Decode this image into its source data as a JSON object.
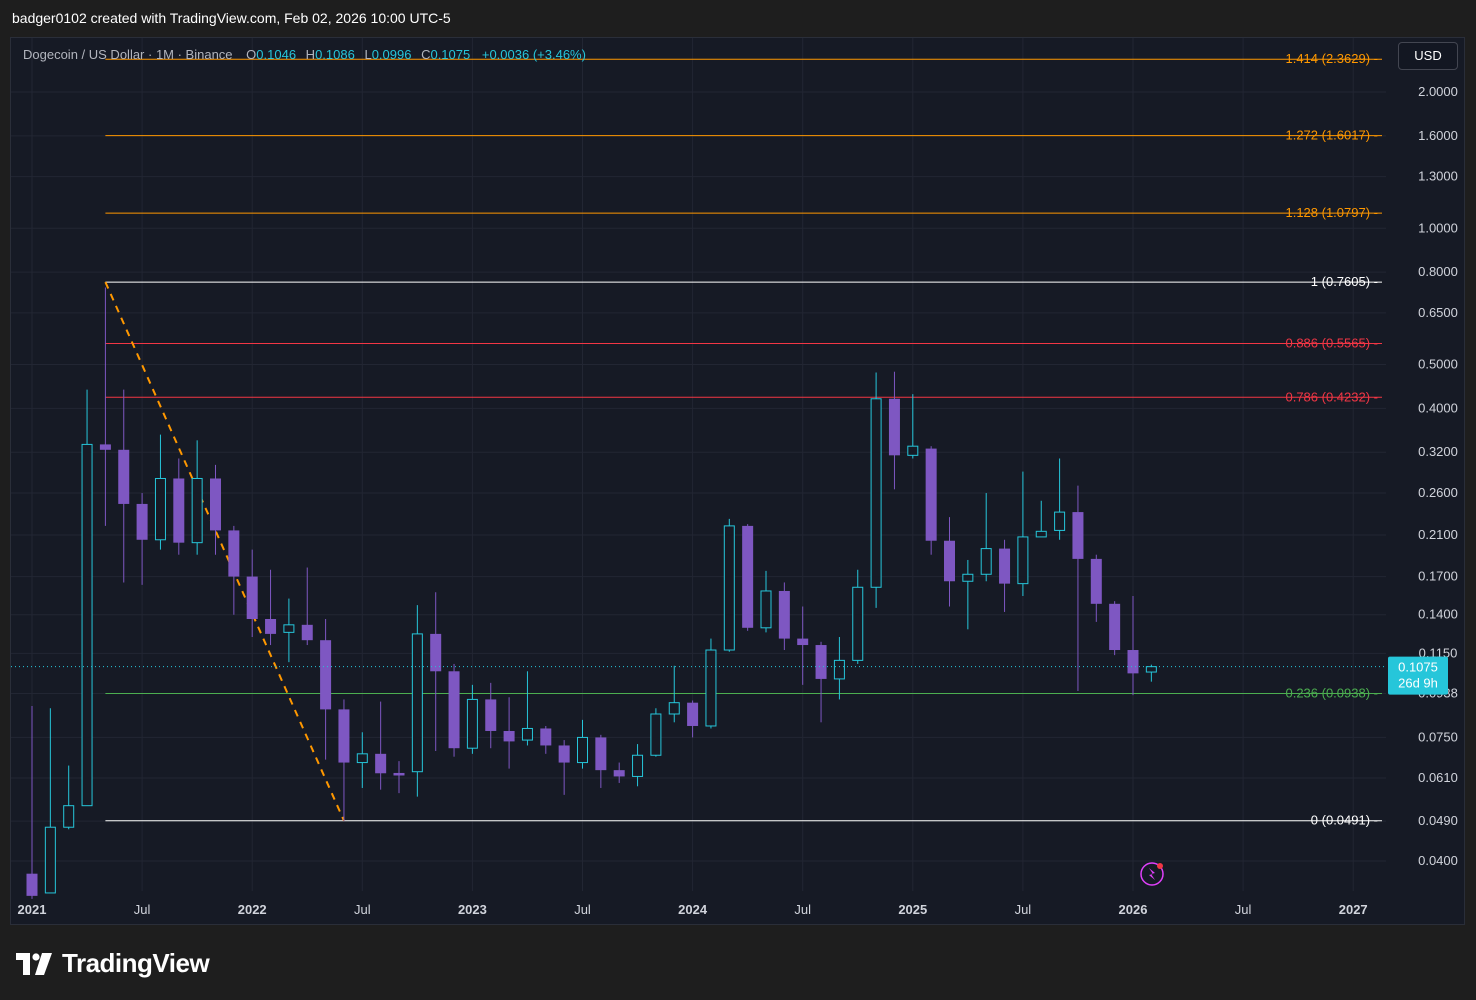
{
  "caption": "badger0102 created with TradingView.com, Feb 02, 2026 10:00 UTC-5",
  "header": {
    "symbol": "Dogecoin / US Dollar · 1M · Binance",
    "o_label": "O",
    "o_value": "0.1046",
    "h_label": "H",
    "h_value": "0.1086",
    "l_label": "L",
    "l_value": "0.0996",
    "c_label": "C",
    "c_value": "0.1075",
    "change": "+0.0036 (+3.46%)"
  },
  "currency_button": "USD",
  "brand": "TradingView",
  "price_tag": {
    "price": "0.1075",
    "countdown": "26d 9h"
  },
  "colors": {
    "up": "#26c6da",
    "down": "#7e57c2",
    "background": "#161a25",
    "grid": "#222633"
  },
  "chart_data": {
    "type": "candlestick",
    "scale": "log",
    "timeframe": "1M",
    "ylim": [
      0.0345,
      2.75
    ],
    "y_ticks": [
      {
        "v": 2.0,
        "label": "2.0000"
      },
      {
        "v": 1.6,
        "label": "1.6000"
      },
      {
        "v": 1.3,
        "label": "1.3000"
      },
      {
        "v": 1.0,
        "label": "1.0000"
      },
      {
        "v": 0.8,
        "label": "0.8000"
      },
      {
        "v": 0.65,
        "label": "0.6500"
      },
      {
        "v": 0.5,
        "label": "0.5000"
      },
      {
        "v": 0.4,
        "label": "0.4000"
      },
      {
        "v": 0.32,
        "label": "0.3200"
      },
      {
        "v": 0.26,
        "label": "0.2600"
      },
      {
        "v": 0.21,
        "label": "0.2100"
      },
      {
        "v": 0.17,
        "label": "0.1700"
      },
      {
        "v": 0.14,
        "label": "0.1400"
      },
      {
        "v": 0.115,
        "label": "0.1150"
      },
      {
        "v": 0.0938,
        "label": "0.0938"
      },
      {
        "v": 0.075,
        "label": "0.0750"
      },
      {
        "v": 0.061,
        "label": "0.0610"
      },
      {
        "v": 0.049,
        "label": "0.0490"
      },
      {
        "v": 0.04,
        "label": "0.0400"
      }
    ],
    "x_ticks": [
      {
        "i": 0,
        "label": "2021"
      },
      {
        "i": 6,
        "label": "Jul"
      },
      {
        "i": 12,
        "label": "2022"
      },
      {
        "i": 18,
        "label": "Jul"
      },
      {
        "i": 24,
        "label": "2023"
      },
      {
        "i": 30,
        "label": "Jul"
      },
      {
        "i": 36,
        "label": "2024"
      },
      {
        "i": 42,
        "label": "Jul"
      },
      {
        "i": 48,
        "label": "2025"
      },
      {
        "i": 54,
        "label": "Jul"
      },
      {
        "i": 60,
        "label": "2026"
      },
      {
        "i": 66,
        "label": "Jul"
      },
      {
        "i": 72,
        "label": "2027"
      }
    ],
    "fib_levels": [
      {
        "ratio": "1.414",
        "price": 2.3629,
        "label": "1.414 (2.3629)",
        "color": "#ff9800"
      },
      {
        "ratio": "1.272",
        "price": 1.6017,
        "label": "1.272 (1.6017)",
        "color": "#ff9800"
      },
      {
        "ratio": "1.128",
        "price": 1.0797,
        "label": "1.128 (1.0797)",
        "color": "#ff9800"
      },
      {
        "ratio": "1",
        "price": 0.7605,
        "label": "1 (0.7605)",
        "color": "#ffffff"
      },
      {
        "ratio": "0.886",
        "price": 0.5565,
        "label": "0.886 (0.5565)",
        "color": "#f23645"
      },
      {
        "ratio": "0.786",
        "price": 0.4232,
        "label": "0.786 (0.4232)",
        "color": "#f23645"
      },
      {
        "ratio": "0.236",
        "price": 0.0938,
        "label": "0.236 (0.0938)",
        "color": "#4caf50"
      },
      {
        "ratio": "0",
        "price": 0.0491,
        "label": "0 (0.0491)",
        "color": "#ffffff"
      }
    ],
    "fib_anchor": {
      "from_i": 4,
      "from_price": 0.7605,
      "to_i": 17,
      "to_price": 0.0491
    },
    "last_price": 0.1075,
    "candles": [
      {
        "d": "2021-01",
        "o": 0.0375,
        "h": 0.088,
        "l": 0.033,
        "c": 0.0335
      },
      {
        "d": "2021-02",
        "o": 0.034,
        "h": 0.087,
        "l": 0.034,
        "c": 0.0475
      },
      {
        "d": "2021-03",
        "o": 0.0475,
        "h": 0.065,
        "l": 0.047,
        "c": 0.053
      },
      {
        "d": "2021-04",
        "o": 0.053,
        "h": 0.44,
        "l": 0.053,
        "c": 0.333
      },
      {
        "d": "2021-05",
        "o": 0.333,
        "h": 0.74,
        "l": 0.22,
        "c": 0.324
      },
      {
        "d": "2021-06",
        "o": 0.324,
        "h": 0.44,
        "l": 0.165,
        "c": 0.246
      },
      {
        "d": "2021-07",
        "o": 0.246,
        "h": 0.26,
        "l": 0.163,
        "c": 0.205
      },
      {
        "d": "2021-08",
        "o": 0.205,
        "h": 0.35,
        "l": 0.195,
        "c": 0.28
      },
      {
        "d": "2021-09",
        "o": 0.28,
        "h": 0.31,
        "l": 0.19,
        "c": 0.202
      },
      {
        "d": "2021-10",
        "o": 0.202,
        "h": 0.34,
        "l": 0.19,
        "c": 0.28
      },
      {
        "d": "2021-11",
        "o": 0.28,
        "h": 0.3,
        "l": 0.19,
        "c": 0.215
      },
      {
        "d": "2021-12",
        "o": 0.215,
        "h": 0.22,
        "l": 0.14,
        "c": 0.17
      },
      {
        "d": "2022-01",
        "o": 0.17,
        "h": 0.195,
        "l": 0.125,
        "c": 0.137
      },
      {
        "d": "2022-02",
        "o": 0.137,
        "h": 0.176,
        "l": 0.12,
        "c": 0.127
      },
      {
        "d": "2022-03",
        "o": 0.128,
        "h": 0.152,
        "l": 0.11,
        "c": 0.133
      },
      {
        "d": "2022-04",
        "o": 0.133,
        "h": 0.178,
        "l": 0.12,
        "c": 0.123
      },
      {
        "d": "2022-05",
        "o": 0.123,
        "h": 0.137,
        "l": 0.067,
        "c": 0.0865
      },
      {
        "d": "2022-06",
        "o": 0.0865,
        "h": 0.091,
        "l": 0.049,
        "c": 0.066
      },
      {
        "d": "2022-07",
        "o": 0.066,
        "h": 0.077,
        "l": 0.058,
        "c": 0.069
      },
      {
        "d": "2022-08",
        "o": 0.069,
        "h": 0.09,
        "l": 0.0575,
        "c": 0.0625
      },
      {
        "d": "2022-09",
        "o": 0.0626,
        "h": 0.0665,
        "l": 0.0565,
        "c": 0.0618
      },
      {
        "d": "2022-10",
        "o": 0.063,
        "h": 0.147,
        "l": 0.0555,
        "c": 0.127
      },
      {
        "d": "2022-11",
        "o": 0.127,
        "h": 0.157,
        "l": 0.07,
        "c": 0.105
      },
      {
        "d": "2022-12",
        "o": 0.105,
        "h": 0.109,
        "l": 0.068,
        "c": 0.071
      },
      {
        "d": "2023-01",
        "o": 0.071,
        "h": 0.098,
        "l": 0.069,
        "c": 0.091
      },
      {
        "d": "2023-02",
        "o": 0.091,
        "h": 0.099,
        "l": 0.071,
        "c": 0.0775
      },
      {
        "d": "2023-03",
        "o": 0.0775,
        "h": 0.092,
        "l": 0.064,
        "c": 0.0735
      },
      {
        "d": "2023-04",
        "o": 0.074,
        "h": 0.105,
        "l": 0.072,
        "c": 0.0785
      },
      {
        "d": "2023-05",
        "o": 0.0785,
        "h": 0.0795,
        "l": 0.069,
        "c": 0.072
      },
      {
        "d": "2023-06",
        "o": 0.072,
        "h": 0.074,
        "l": 0.056,
        "c": 0.066
      },
      {
        "d": "2023-07",
        "o": 0.066,
        "h": 0.082,
        "l": 0.064,
        "c": 0.075
      },
      {
        "d": "2023-08",
        "o": 0.075,
        "h": 0.076,
        "l": 0.058,
        "c": 0.0635
      },
      {
        "d": "2023-09",
        "o": 0.0635,
        "h": 0.066,
        "l": 0.0595,
        "c": 0.0615
      },
      {
        "d": "2023-10",
        "o": 0.0615,
        "h": 0.0725,
        "l": 0.0585,
        "c": 0.0685
      },
      {
        "d": "2023-11",
        "o": 0.0685,
        "h": 0.087,
        "l": 0.068,
        "c": 0.0845
      },
      {
        "d": "2023-12",
        "o": 0.0845,
        "h": 0.108,
        "l": 0.081,
        "c": 0.0895
      },
      {
        "d": "2024-01",
        "o": 0.0895,
        "h": 0.0905,
        "l": 0.075,
        "c": 0.0795
      },
      {
        "d": "2024-02",
        "o": 0.0795,
        "h": 0.124,
        "l": 0.0785,
        "c": 0.117
      },
      {
        "d": "2024-03",
        "o": 0.117,
        "h": 0.228,
        "l": 0.116,
        "c": 0.22
      },
      {
        "d": "2024-04",
        "o": 0.22,
        "h": 0.222,
        "l": 0.129,
        "c": 0.131
      },
      {
        "d": "2024-05",
        "o": 0.131,
        "h": 0.175,
        "l": 0.128,
        "c": 0.158
      },
      {
        "d": "2024-06",
        "o": 0.158,
        "h": 0.165,
        "l": 0.117,
        "c": 0.124
      },
      {
        "d": "2024-07",
        "o": 0.124,
        "h": 0.146,
        "l": 0.098,
        "c": 0.12
      },
      {
        "d": "2024-08",
        "o": 0.12,
        "h": 0.122,
        "l": 0.081,
        "c": 0.101
      },
      {
        "d": "2024-09",
        "o": 0.101,
        "h": 0.125,
        "l": 0.091,
        "c": 0.111
      },
      {
        "d": "2024-10",
        "o": 0.111,
        "h": 0.176,
        "l": 0.109,
        "c": 0.161
      },
      {
        "d": "2024-11",
        "o": 0.161,
        "h": 0.48,
        "l": 0.145,
        "c": 0.42
      },
      {
        "d": "2024-12",
        "o": 0.42,
        "h": 0.482,
        "l": 0.265,
        "c": 0.315
      },
      {
        "d": "2025-01",
        "o": 0.315,
        "h": 0.43,
        "l": 0.31,
        "c": 0.33
      },
      {
        "d": "2025-02",
        "o": 0.326,
        "h": 0.33,
        "l": 0.19,
        "c": 0.204
      },
      {
        "d": "2025-03",
        "o": 0.204,
        "h": 0.23,
        "l": 0.146,
        "c": 0.166
      },
      {
        "d": "2025-04",
        "o": 0.166,
        "h": 0.185,
        "l": 0.13,
        "c": 0.172
      },
      {
        "d": "2025-05",
        "o": 0.172,
        "h": 0.26,
        "l": 0.166,
        "c": 0.196
      },
      {
        "d": "2025-06",
        "o": 0.196,
        "h": 0.205,
        "l": 0.142,
        "c": 0.164
      },
      {
        "d": "2025-07",
        "o": 0.164,
        "h": 0.29,
        "l": 0.154,
        "c": 0.208
      },
      {
        "d": "2025-08",
        "o": 0.208,
        "h": 0.25,
        "l": 0.21,
        "c": 0.214
      },
      {
        "d": "2025-09",
        "o": 0.215,
        "h": 0.31,
        "l": 0.205,
        "c": 0.236
      },
      {
        "d": "2025-10",
        "o": 0.236,
        "h": 0.27,
        "l": 0.095,
        "c": 0.186
      },
      {
        "d": "2025-11",
        "o": 0.186,
        "h": 0.19,
        "l": 0.135,
        "c": 0.148
      },
      {
        "d": "2025-12",
        "o": 0.148,
        "h": 0.15,
        "l": 0.114,
        "c": 0.117
      },
      {
        "d": "2026-01",
        "o": 0.117,
        "h": 0.154,
        "l": 0.093,
        "c": 0.1039
      },
      {
        "d": "2026-02",
        "o": 0.1046,
        "h": 0.1086,
        "l": 0.0996,
        "c": 0.1075
      }
    ]
  }
}
